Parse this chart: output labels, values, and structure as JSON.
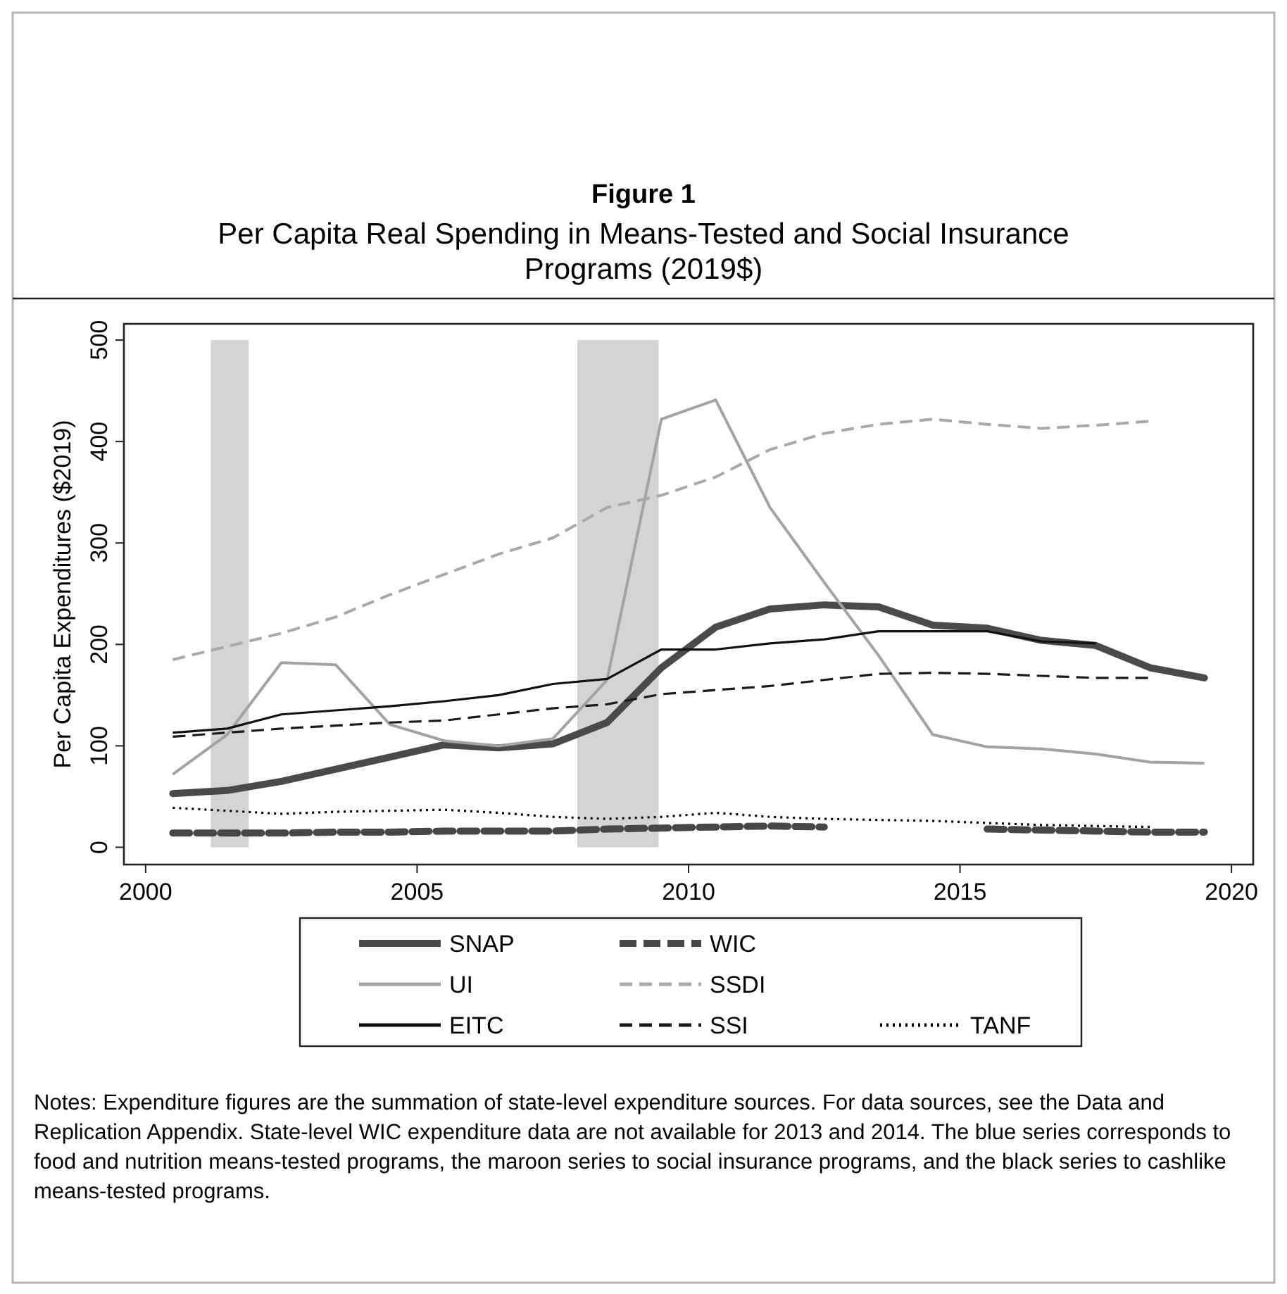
{
  "chart_data": {
    "type": "line",
    "title": "Figure 1",
    "subtitle": "Per Capita Real Spending in Means-Tested and Social Insurance Programs (2019$)",
    "ylabel": "Per Capita Expenditures ($2019)",
    "x": [
      2000.5,
      2001.5,
      2002.5,
      2003.5,
      2004.5,
      2005.5,
      2006.5,
      2007.5,
      2008.5,
      2009.5,
      2010.5,
      2011.5,
      2012.5,
      2013.5,
      2014.5,
      2015.5,
      2016.5,
      2017.5,
      2018.5,
      2019.5
    ],
    "xlim": [
      1999.6,
      2020.4
    ],
    "xticks": [
      2000,
      2005,
      2010,
      2015,
      2020
    ],
    "ylim": [
      -17,
      516
    ],
    "yticks": [
      0,
      100,
      200,
      300,
      400,
      500
    ],
    "grid": false,
    "legend": "bottom",
    "marker": "none",
    "series": [
      {
        "name": "SNAP",
        "color": "#4a4a4a",
        "line_style": "solid",
        "values": [
          53,
          56,
          65,
          77,
          89,
          101,
          98,
          102,
          123,
          177,
          217,
          235,
          239,
          237,
          219,
          216,
          204,
          199,
          177,
          167
        ]
      },
      {
        "name": "UI",
        "color": "#a3a3a3",
        "line_style": "solid",
        "values": [
          72,
          111,
          182,
          180,
          121,
          105,
          100,
          107,
          165,
          422,
          441,
          335,
          261,
          189,
          111,
          99,
          97,
          92,
          84,
          83
        ]
      },
      {
        "name": "EITC",
        "color": "#111111",
        "line_style": "solid",
        "values": [
          113,
          117,
          131,
          135,
          139,
          144,
          150,
          161,
          166,
          195,
          195,
          201,
          205,
          213,
          213,
          213,
          203,
          201,
          null,
          null
        ]
      },
      {
        "name": "WIC",
        "color": "#474747",
        "line_style": "dashed",
        "values": [
          14,
          14,
          14,
          15,
          15,
          16,
          16,
          16,
          18,
          19,
          20,
          21,
          20,
          null,
          null,
          18,
          17,
          16,
          15,
          15
        ]
      },
      {
        "name": "SSDI",
        "color": "#a9a9a9",
        "line_style": "dashed",
        "values": [
          185,
          198,
          211,
          227,
          249,
          269,
          289,
          305,
          335,
          347,
          365,
          392,
          408,
          417,
          422,
          417,
          413,
          416,
          420,
          null
        ]
      },
      {
        "name": "SSI",
        "color": "#1a1a1a",
        "line_style": "dashed",
        "values": [
          109,
          113,
          117,
          120,
          123,
          125,
          131,
          137,
          141,
          151,
          155,
          159,
          165,
          171,
          172,
          171,
          169,
          167,
          167,
          null
        ]
      },
      {
        "name": "TANF",
        "color": "#000000",
        "line_style": "dotted",
        "values": [
          39,
          36,
          33,
          35,
          36,
          37,
          34,
          30,
          28,
          30,
          34,
          30,
          28,
          27,
          26,
          24,
          22,
          21,
          20,
          null
        ]
      }
    ],
    "bands": [
      {
        "axis": "x",
        "from": 2001.2,
        "to": 2001.9,
        "color": "#d4d4d6"
      },
      {
        "axis": "x",
        "from": 2007.95,
        "to": 2009.45,
        "color": "#d4d4d6"
      }
    ],
    "annotations": [
      "Notes: Expenditure figures are the summation of state-level expenditure sources. For data sources, see the Data and Replication Appendix. State-level WIC expenditure data are not available for 2013 and 2014. The blue series corresponds to food and nutrition means-tested programs, the maroon series to social insurance programs, and the black series to cashlike means-tested programs."
    ]
  }
}
